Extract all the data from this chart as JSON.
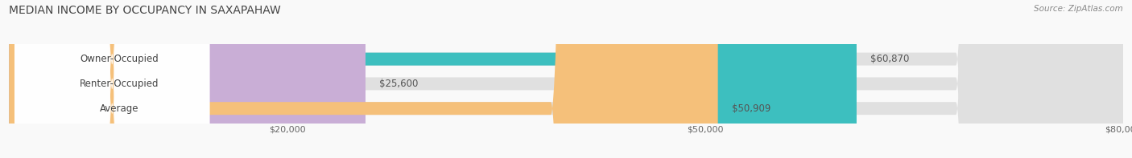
{
  "title": "MEDIAN INCOME BY OCCUPANCY IN SAXAPAHAW",
  "source": "Source: ZipAtlas.com",
  "categories": [
    "Owner-Occupied",
    "Renter-Occupied",
    "Average"
  ],
  "values": [
    60870,
    25600,
    50909
  ],
  "bar_colors": [
    "#3dbfbf",
    "#c9aed6",
    "#f5c07a"
  ],
  "value_labels": [
    "$60,870",
    "$25,600",
    "$50,909"
  ],
  "xlim": [
    0,
    80000
  ],
  "xticks": [
    20000,
    50000,
    80000
  ],
  "xtick_labels": [
    "$20,000",
    "$50,000",
    "$80,000"
  ],
  "title_fontsize": 10,
  "label_fontsize": 8.5,
  "tick_fontsize": 8,
  "source_fontsize": 7.5,
  "bar_height": 0.52,
  "background_color": "#f9f9f9",
  "bg_bar_color": "#e0e0e0",
  "label_pill_color": "#ffffff",
  "text_color": "#444444",
  "value_color": "#555555",
  "grid_color": "#cccccc",
  "source_color": "#888888"
}
